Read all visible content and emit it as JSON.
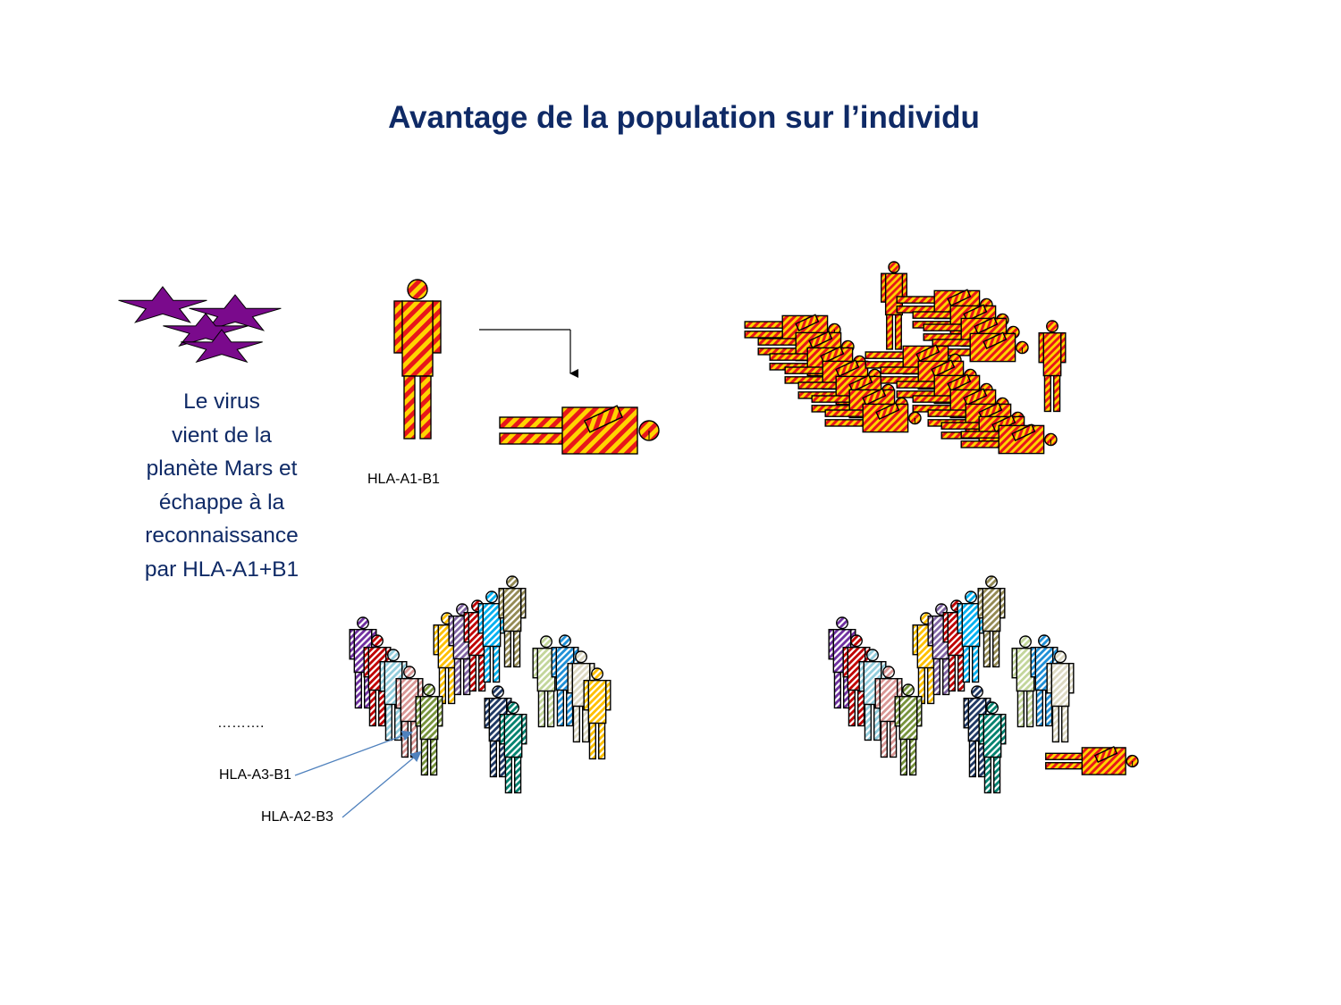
{
  "title": "Avantage de la population sur l’individu",
  "virus_text": [
    "Le virus",
    "vient de la",
    "planète Mars et",
    "échappe à la",
    "reconnaissance",
    "par HLA-A1+B1"
  ],
  "labels": {
    "individual_hla": "HLA-A1-B1",
    "ellipsis": "……….",
    "hla_a3_b1": "HLA-A3-B1",
    "hla_a2_b3": "HLA-A2-B3"
  },
  "colors": {
    "title": "#0f2a66",
    "virus_star": "#7a0a8c",
    "stripe_red": "#e8161b",
    "stripe_yellow": "#ffd400",
    "arrow_line": "#4f81bd"
  },
  "icons": {
    "virus": "star-icon",
    "person": "person-icon",
    "dead_person": "lying-person-icon"
  },
  "population_colors": [
    "#7030a0",
    "#c00000",
    "#92cddc",
    "#d99694",
    "#77933c",
    "#1f3864",
    "#00b0f0",
    "#c3d69b",
    "#8064a2",
    "#ffc000",
    "#948a54",
    "#1f8fd6",
    "#ddd9c3",
    "#00826f"
  ]
}
